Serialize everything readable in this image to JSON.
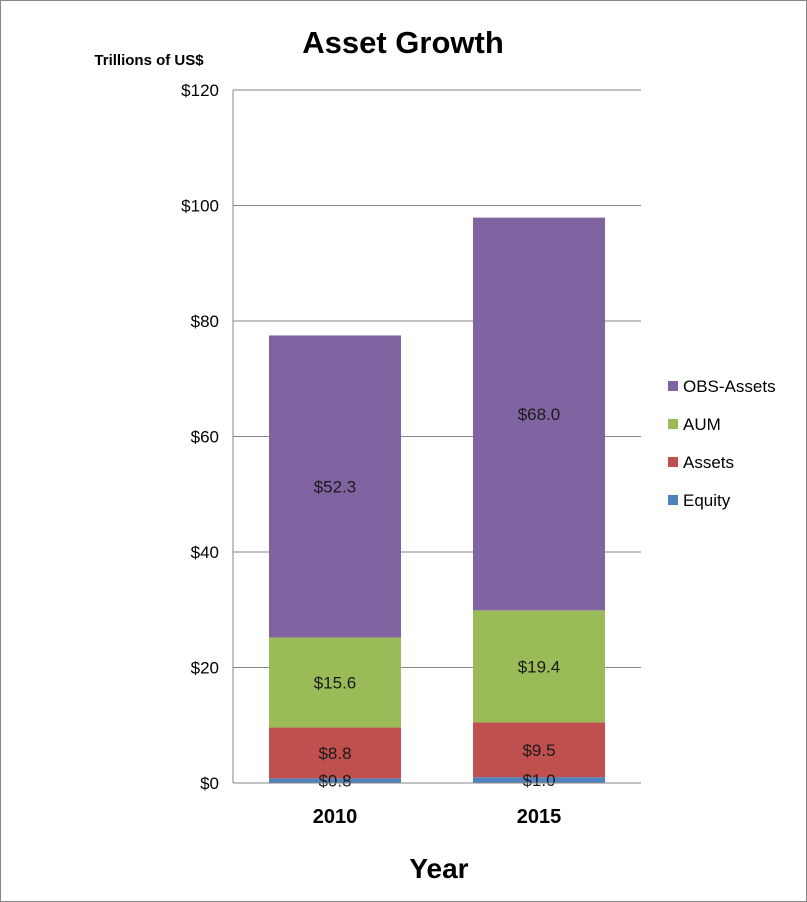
{
  "chart_data": {
    "type": "bar",
    "stacked": true,
    "title": "Asset Growth",
    "xlabel": "Year",
    "ylabel": "Trillions  of US$",
    "categories": [
      "2010",
      "2015"
    ],
    "ylim": [
      0,
      120
    ],
    "yticks": [
      0,
      20,
      40,
      60,
      80,
      100,
      120
    ],
    "ytick_labels": [
      "$0",
      "$20",
      "$40",
      "$60",
      "$80",
      "$100",
      "$120"
    ],
    "grid": true,
    "legend_position": "right",
    "series": [
      {
        "name": "Equity",
        "values": [
          0.8,
          1.0
        ],
        "labels": [
          "$0.8",
          "$1.0"
        ],
        "color": "#4f81bd"
      },
      {
        "name": "Assets",
        "values": [
          8.8,
          9.5
        ],
        "labels": [
          "$8.8",
          "$9.5"
        ],
        "color": "#c0504d"
      },
      {
        "name": "AUM",
        "values": [
          15.6,
          19.4
        ],
        "labels": [
          "$15.6",
          "$19.4"
        ],
        "color": "#9bbb59"
      },
      {
        "name": "OBS-Assets",
        "values": [
          52.3,
          68.0
        ],
        "labels": [
          "$52.3",
          "$68.0"
        ],
        "color": "#8064a2"
      }
    ]
  }
}
